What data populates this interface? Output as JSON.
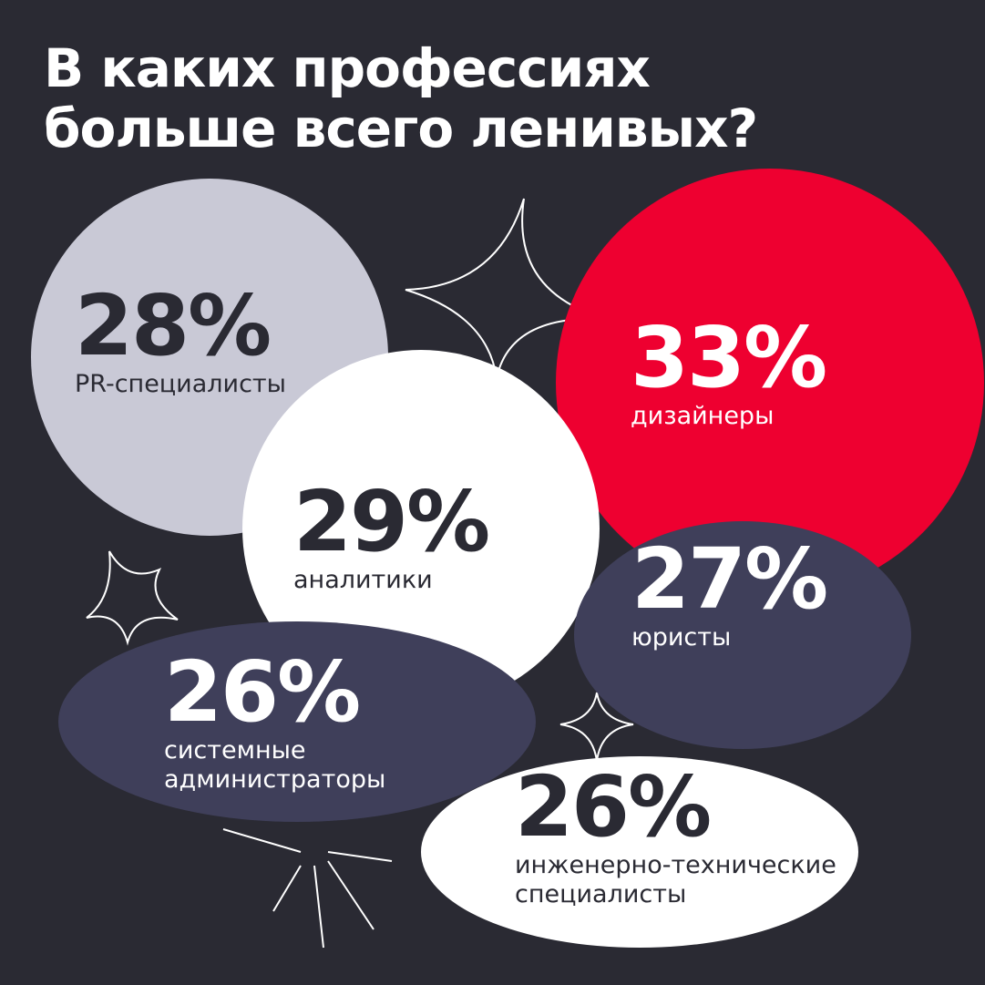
{
  "title": [
    "В каких профессиях",
    "больше всего ленивых?"
  ],
  "items": [
    {
      "value": "28%",
      "label": [
        "PR-специалисты"
      ]
    },
    {
      "value": "33%",
      "label": [
        "дизайнеры"
      ]
    },
    {
      "value": "29%",
      "label": [
        "аналитики"
      ]
    },
    {
      "value": "27%",
      "label": [
        "юристы"
      ]
    },
    {
      "value": "26%",
      "label": [
        "системные",
        "администраторы"
      ]
    },
    {
      "value": "26%",
      "label": [
        "инженерно-технические",
        "специалисты"
      ]
    }
  ]
}
